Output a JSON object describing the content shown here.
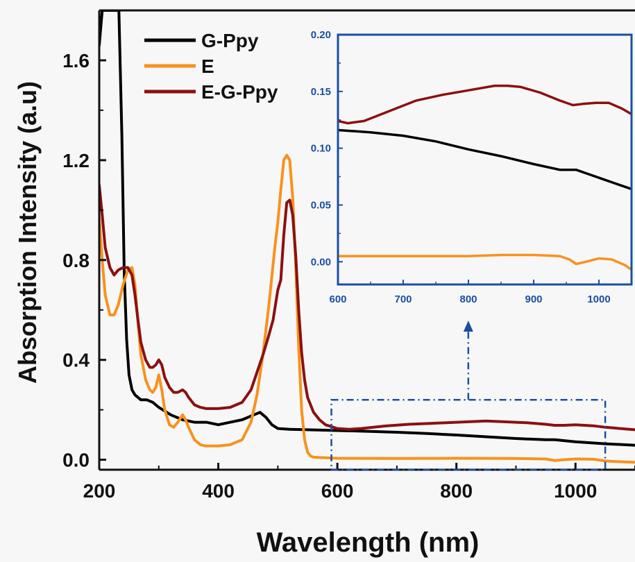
{
  "chart_data": {
    "type": "line",
    "xlabel": "Wavelength (nm)",
    "ylabel": "Absorption Intensity (a.u)",
    "xlim": [
      200,
      1100
    ],
    "ylim": [
      -0.04,
      1.8
    ],
    "x_ticks": [
      "200",
      "400",
      "600",
      "800",
      "1000"
    ],
    "y_ticks": [
      "0.0",
      "0.4",
      "0.8",
      "1.2",
      "1.6"
    ],
    "legend_position": "top-left",
    "series": [
      {
        "name": "G-Ppy",
        "color": "#000000",
        "points": [
          [
            200,
            1.66
          ],
          [
            205,
            1.8
          ],
          [
            233,
            1.8
          ],
          [
            238,
            1.3
          ],
          [
            242,
            0.75
          ],
          [
            246,
            0.48
          ],
          [
            250,
            0.34
          ],
          [
            255,
            0.28
          ],
          [
            260,
            0.26
          ],
          [
            270,
            0.24
          ],
          [
            280,
            0.24
          ],
          [
            290,
            0.23
          ],
          [
            300,
            0.21
          ],
          [
            320,
            0.18
          ],
          [
            340,
            0.16
          ],
          [
            360,
            0.15
          ],
          [
            380,
            0.15
          ],
          [
            400,
            0.14
          ],
          [
            420,
            0.15
          ],
          [
            440,
            0.16
          ],
          [
            460,
            0.18
          ],
          [
            470,
            0.19
          ],
          [
            480,
            0.17
          ],
          [
            490,
            0.14
          ],
          [
            500,
            0.125
          ],
          [
            520,
            0.122
          ],
          [
            550,
            0.12
          ],
          [
            600,
            0.117
          ],
          [
            650,
            0.114
          ],
          [
            700,
            0.11
          ],
          [
            750,
            0.105
          ],
          [
            800,
            0.099
          ],
          [
            850,
            0.092
          ],
          [
            900,
            0.085
          ],
          [
            950,
            0.08
          ],
          [
            965,
            0.08
          ],
          [
            1000,
            0.072
          ],
          [
            1050,
            0.064
          ],
          [
            1100,
            0.058
          ]
        ]
      },
      {
        "name": "E",
        "color": "#f7921e",
        "points": [
          [
            200,
            0.97
          ],
          [
            205,
            0.8
          ],
          [
            210,
            0.66
          ],
          [
            218,
            0.58
          ],
          [
            225,
            0.58
          ],
          [
            232,
            0.62
          ],
          [
            240,
            0.7
          ],
          [
            248,
            0.76
          ],
          [
            255,
            0.77
          ],
          [
            260,
            0.7
          ],
          [
            265,
            0.55
          ],
          [
            270,
            0.42
          ],
          [
            278,
            0.32
          ],
          [
            285,
            0.28
          ],
          [
            290,
            0.27
          ],
          [
            295,
            0.29
          ],
          [
            300,
            0.34
          ],
          [
            305,
            0.28
          ],
          [
            310,
            0.2
          ],
          [
            318,
            0.14
          ],
          [
            325,
            0.13
          ],
          [
            332,
            0.15
          ],
          [
            340,
            0.18
          ],
          [
            345,
            0.16
          ],
          [
            350,
            0.13
          ],
          [
            360,
            0.08
          ],
          [
            370,
            0.06
          ],
          [
            380,
            0.055
          ],
          [
            400,
            0.055
          ],
          [
            420,
            0.06
          ],
          [
            440,
            0.08
          ],
          [
            455,
            0.15
          ],
          [
            465,
            0.26
          ],
          [
            475,
            0.42
          ],
          [
            485,
            0.62
          ],
          [
            495,
            0.85
          ],
          [
            500,
            0.95
          ],
          [
            505,
            1.08
          ],
          [
            510,
            1.2
          ],
          [
            515,
            1.22
          ],
          [
            520,
            1.2
          ],
          [
            525,
            1.05
          ],
          [
            530,
            0.78
          ],
          [
            535,
            0.45
          ],
          [
            540,
            0.2
          ],
          [
            545,
            0.08
          ],
          [
            550,
            0.03
          ],
          [
            555,
            0.015
          ],
          [
            560,
            0.01
          ],
          [
            600,
            0.006
          ],
          [
            700,
            0.005
          ],
          [
            800,
            0.006
          ],
          [
            900,
            0.005
          ],
          [
            950,
            0.003
          ],
          [
            965,
            -0.003
          ],
          [
            980,
            0.0
          ],
          [
            1000,
            0.003
          ],
          [
            1030,
            0.002
          ],
          [
            1050,
            -0.005
          ],
          [
            1075,
            -0.008
          ],
          [
            1100,
            -0.01
          ]
        ]
      },
      {
        "name": "E-G-Ppy",
        "color": "#8b1010",
        "points": [
          [
            200,
            1.1
          ],
          [
            205,
            0.98
          ],
          [
            210,
            0.85
          ],
          [
            218,
            0.77
          ],
          [
            225,
            0.74
          ],
          [
            232,
            0.76
          ],
          [
            240,
            0.77
          ],
          [
            248,
            0.77
          ],
          [
            255,
            0.74
          ],
          [
            260,
            0.66
          ],
          [
            265,
            0.56
          ],
          [
            270,
            0.47
          ],
          [
            278,
            0.4
          ],
          [
            285,
            0.37
          ],
          [
            290,
            0.37
          ],
          [
            295,
            0.38
          ],
          [
            300,
            0.4
          ],
          [
            305,
            0.38
          ],
          [
            310,
            0.33
          ],
          [
            318,
            0.29
          ],
          [
            325,
            0.27
          ],
          [
            332,
            0.27
          ],
          [
            340,
            0.28
          ],
          [
            345,
            0.27
          ],
          [
            350,
            0.25
          ],
          [
            360,
            0.22
          ],
          [
            370,
            0.21
          ],
          [
            380,
            0.205
          ],
          [
            400,
            0.205
          ],
          [
            420,
            0.21
          ],
          [
            440,
            0.23
          ],
          [
            455,
            0.28
          ],
          [
            465,
            0.35
          ],
          [
            475,
            0.42
          ],
          [
            485,
            0.5
          ],
          [
            492,
            0.56
          ],
          [
            500,
            0.68
          ],
          [
            505,
            0.72
          ],
          [
            510,
            0.9
          ],
          [
            515,
            1.03
          ],
          [
            520,
            1.04
          ],
          [
            525,
            0.98
          ],
          [
            530,
            0.82
          ],
          [
            535,
            0.6
          ],
          [
            540,
            0.43
          ],
          [
            545,
            0.32
          ],
          [
            550,
            0.25
          ],
          [
            560,
            0.19
          ],
          [
            570,
            0.16
          ],
          [
            580,
            0.14
          ],
          [
            600,
            0.125
          ],
          [
            620,
            0.122
          ],
          [
            640,
            0.125
          ],
          [
            680,
            0.135
          ],
          [
            720,
            0.142
          ],
          [
            760,
            0.146
          ],
          [
            800,
            0.15
          ],
          [
            850,
            0.155
          ],
          [
            880,
            0.152
          ],
          [
            920,
            0.148
          ],
          [
            950,
            0.142
          ],
          [
            965,
            0.138
          ],
          [
            980,
            0.138
          ],
          [
            1000,
            0.14
          ],
          [
            1030,
            0.136
          ],
          [
            1050,
            0.13
          ],
          [
            1075,
            0.125
          ],
          [
            1100,
            0.12
          ]
        ]
      }
    ],
    "inset": {
      "xlim": [
        600,
        1050
      ],
      "ylim": [
        -0.02,
        0.2
      ],
      "x_ticks": [
        "600",
        "700",
        "800",
        "900",
        "1000"
      ],
      "y_ticks": [
        "0.00",
        "0.05",
        "0.10",
        "0.15",
        "0.20"
      ],
      "axis_color": "#1a4fa0",
      "series": [
        {
          "name": "G-Ppy",
          "points": [
            [
              600,
              0.116
            ],
            [
              650,
              0.114
            ],
            [
              700,
              0.111
            ],
            [
              750,
              0.106
            ],
            [
              800,
              0.099
            ],
            [
              850,
              0.093
            ],
            [
              900,
              0.086
            ],
            [
              940,
              0.081
            ],
            [
              965,
              0.081
            ],
            [
              980,
              0.078
            ],
            [
              1000,
              0.074
            ],
            [
              1025,
              0.069
            ],
            [
              1050,
              0.064
            ]
          ]
        },
        {
          "name": "E",
          "points": [
            [
              600,
              0.005
            ],
            [
              650,
              0.005
            ],
            [
              700,
              0.005
            ],
            [
              750,
              0.005
            ],
            [
              800,
              0.005
            ],
            [
              850,
              0.006
            ],
            [
              900,
              0.006
            ],
            [
              940,
              0.005
            ],
            [
              955,
              0.002
            ],
            [
              965,
              -0.002
            ],
            [
              980,
              0.0
            ],
            [
              1000,
              0.003
            ],
            [
              1020,
              0.002
            ],
            [
              1040,
              -0.003
            ],
            [
              1050,
              -0.007
            ]
          ]
        },
        {
          "name": "E-G-Ppy",
          "points": [
            [
              600,
              0.124
            ],
            [
              615,
              0.122
            ],
            [
              640,
              0.124
            ],
            [
              680,
              0.133
            ],
            [
              720,
              0.142
            ],
            [
              760,
              0.147
            ],
            [
              800,
              0.151
            ],
            [
              840,
              0.155
            ],
            [
              860,
              0.155
            ],
            [
              880,
              0.154
            ],
            [
              910,
              0.149
            ],
            [
              940,
              0.142
            ],
            [
              960,
              0.138
            ],
            [
              975,
              0.139
            ],
            [
              995,
              0.14
            ],
            [
              1015,
              0.14
            ],
            [
              1035,
              0.135
            ],
            [
              1050,
              0.13
            ]
          ]
        }
      ]
    },
    "zoom_box": {
      "xlim": [
        590,
        1050
      ],
      "ylim": [
        -0.04,
        0.24
      ]
    }
  }
}
